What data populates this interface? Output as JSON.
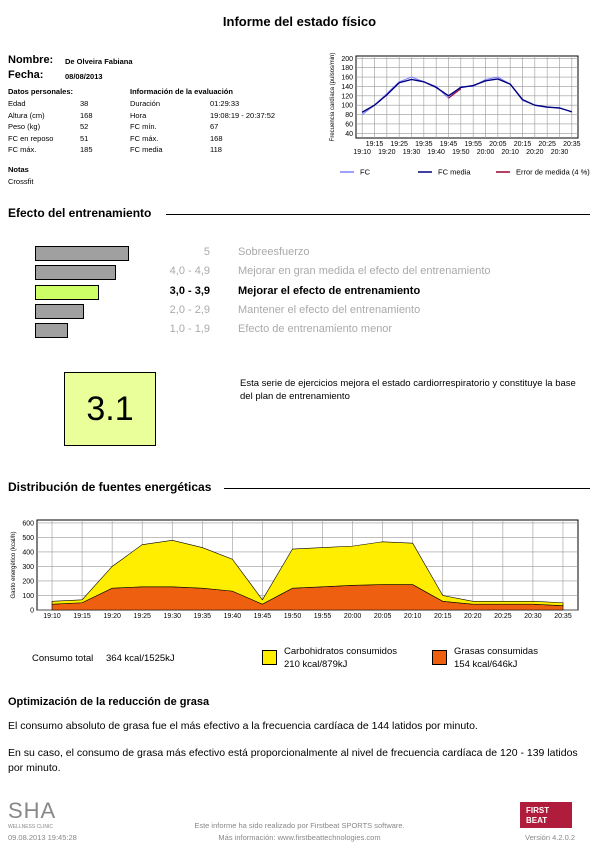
{
  "header": {
    "title": "Informe del estado físico"
  },
  "person": {
    "name_label": "Nombre:",
    "name": "De Olveira Fabiana",
    "date_label": "Fecha:",
    "date": "08/08/2013"
  },
  "personal": {
    "title": "Datos personales:",
    "rows": [
      [
        "Edad",
        "38"
      ],
      [
        "Altura (cm)",
        "168"
      ],
      [
        "Peso (kg)",
        "52"
      ],
      [
        "FC en reposo",
        "51"
      ],
      [
        "FC máx.",
        "185"
      ]
    ]
  },
  "evaluation": {
    "title": "Información de la evaluación",
    "rows": [
      [
        "Duración",
        "01:29:33"
      ],
      [
        "Hora",
        "19:08:19 - 20:37:52"
      ],
      [
        "FC mín.",
        "67"
      ],
      [
        "FC máx.",
        "168"
      ],
      [
        "FC media",
        "118"
      ]
    ]
  },
  "notes": {
    "title": "Notas",
    "text": "Crossfit"
  },
  "chart_data": [
    {
      "type": "line",
      "y_label": "Frecuencia cardíaca (pulsos/min)",
      "categories": [
        "19:10",
        "19:15",
        "19:20",
        "19:25",
        "19:30",
        "19:35",
        "19:40",
        "19:45",
        "19:50",
        "19:55",
        "20:00",
        "20:05",
        "20:10",
        "20:15",
        "20:20",
        "20:25",
        "20:30",
        "20:35"
      ],
      "ylim": [
        30,
        205
      ],
      "yticks": [
        40,
        60,
        80,
        100,
        120,
        140,
        160,
        180,
        200
      ],
      "grid": true,
      "series": [
        {
          "name": "FC",
          "color": "#8080ff",
          "values": [
            80,
            100,
            125,
            150,
            160,
            150,
            140,
            115,
            140,
            140,
            155,
            160,
            145,
            110,
            100,
            95,
            95,
            85
          ]
        },
        {
          "name": "FC media",
          "color": "#000080",
          "values": [
            85,
            100,
            122,
            148,
            155,
            150,
            138,
            120,
            138,
            142,
            152,
            156,
            145,
            112,
            100,
            96,
            94,
            86
          ]
        },
        {
          "name": "Error de medida (4 %)",
          "color": "#a00030",
          "values": [
            null,
            null,
            null,
            null,
            null,
            null,
            null,
            115,
            135,
            null,
            null,
            null,
            null,
            null,
            null,
            null,
            null,
            null
          ]
        }
      ]
    },
    {
      "type": "stacked_area",
      "y_label": "Gasto energético (kcal/h)",
      "categories": [
        "19:10",
        "19:15",
        "19:20",
        "19:25",
        "19:30",
        "19:35",
        "19:40",
        "19:45",
        "19:50",
        "19:55",
        "20:00",
        "20:05",
        "20:10",
        "20:15",
        "20:20",
        "20:25",
        "20:30",
        "20:35"
      ],
      "ylim": [
        0,
        620
      ],
      "yticks": [
        0,
        100,
        200,
        300,
        400,
        500,
        600
      ],
      "grid": true,
      "series": [
        {
          "name": "Grasas consumidas",
          "detail": "154 kcal/646kJ",
          "color": "#ee6010",
          "values": [
            40,
            50,
            150,
            160,
            160,
            150,
            130,
            40,
            150,
            160,
            170,
            175,
            175,
            60,
            40,
            40,
            40,
            30
          ]
        },
        {
          "name": "Carbohidratos consumidos",
          "detail": "210 kcal/879kJ",
          "color": "#ffee00",
          "values": [
            20,
            20,
            150,
            290,
            320,
            280,
            220,
            30,
            270,
            270,
            270,
            295,
            285,
            40,
            20,
            20,
            20,
            20
          ]
        }
      ]
    }
  ],
  "training_effect": {
    "title": "Efecto del entrenamiento",
    "levels": [
      {
        "range": "5",
        "label": "Sobreesfuerzo"
      },
      {
        "range": "4,0 - 4,9",
        "label": "Mejorar en gran medida el efecto del entrenamiento"
      },
      {
        "range": "3,0 - 3,9",
        "label": "Mejorar el efecto de entrenamiento",
        "highlighted": true
      },
      {
        "range": "2,0 - 2,9",
        "label": "Mantener el efecto del entrenamiento"
      },
      {
        "range": "1,0 - 1,9",
        "label": "Efecto de entrenamiento menor"
      }
    ],
    "score": "3.1",
    "description": "Esta serie de ejercicios mejora el estado cardiorrespiratorio y constituye la base del plan de entrenamiento"
  },
  "energy": {
    "title": "Distribución de fuentes energéticas",
    "total_label": "Consumo total",
    "total": "364 kcal/1525kJ"
  },
  "fat": {
    "title": "Optimización de la reducción de grasa",
    "paragraphs": [
      "El consumo absoluto de grasa fue el más efectivo a la frecuencia cardíaca de 144 latidos por minuto.",
      "En su caso, el consumo de grasa más efectivo está proporcionalmente al nivel de frecuencia cardíaca de 120 - 139 latidos por minuto."
    ]
  },
  "footer": {
    "logo": "SHA",
    "logo_sub": "WELLNESS CLINIC",
    "timestamp": "09.08.2013 19:45:28",
    "note": "Este informe ha sido realizado por Firstbeat SPORTS software.",
    "more": "Más información: www.firstbeattechnologies.com",
    "badge_top": "FIRST",
    "badge_bottom": "BEAT",
    "version": "Versión 4.2.0.2"
  }
}
